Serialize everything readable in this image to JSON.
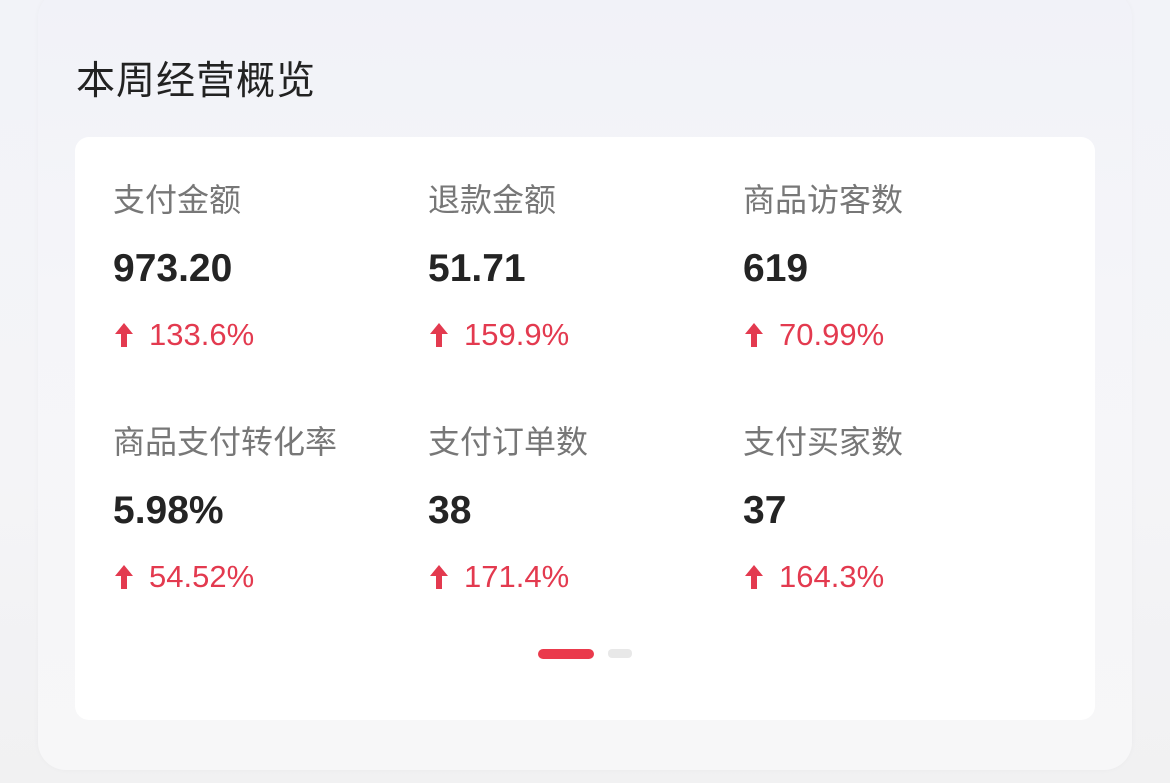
{
  "title": "本周经营概览",
  "colors": {
    "accent": "#ea3a4c",
    "increase": "#e33a4f"
  },
  "metrics": [
    {
      "label": "支付金额",
      "value": "973.20",
      "change": "133.6%",
      "trend": "up"
    },
    {
      "label": "退款金额",
      "value": "51.71",
      "change": "159.9%",
      "trend": "up"
    },
    {
      "label": "商品访客数",
      "value": "619",
      "change": "70.99%",
      "trend": "up"
    },
    {
      "label": "商品支付转化率",
      "value": "5.98%",
      "change": "54.52%",
      "trend": "up"
    },
    {
      "label": "支付订单数",
      "value": "38",
      "change": "171.4%",
      "trend": "up"
    },
    {
      "label": "支付买家数",
      "value": "37",
      "change": "164.3%",
      "trend": "up"
    }
  ],
  "pagination": {
    "current": 1,
    "total": 2
  }
}
